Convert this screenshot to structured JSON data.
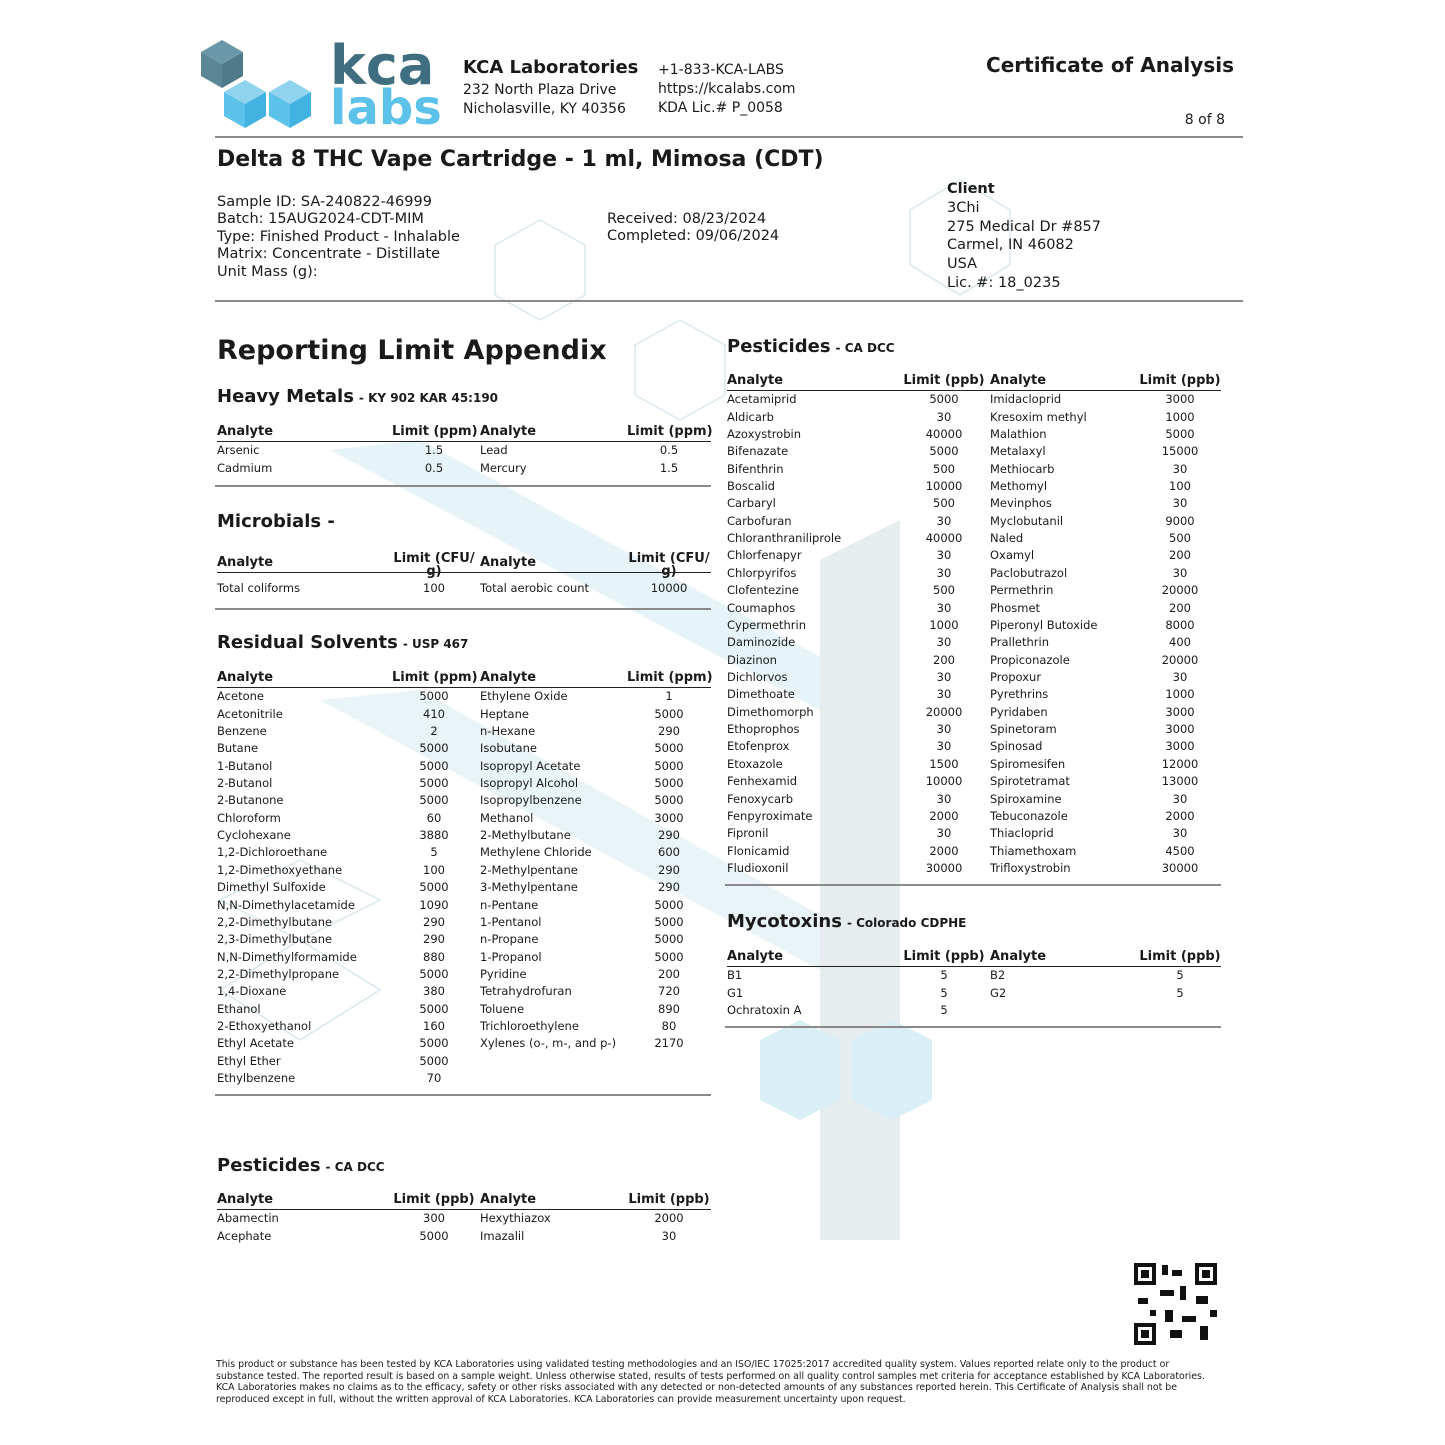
{
  "header": {
    "logo_top": "kca",
    "logo_bottom": "labs",
    "company": "KCA Laboratories",
    "address": [
      "232 North Plaza Drive",
      "Nicholasville, KY 40356"
    ],
    "contact": [
      "+1-833-KCA-LABS",
      "https://kcalabs.com",
      "KDA Lic.# P_0058"
    ],
    "doc_title": "Certificate of Analysis",
    "page": "8 of 8"
  },
  "product": "Delta 8 THC Vape Cartridge - 1 ml, Mimosa (CDT)",
  "sample_info": [
    "Sample ID: SA-240822-46999",
    "Batch: 15AUG2024-CDT-MIM",
    "Type: Finished Product - Inhalable",
    "Matrix: Concentrate - Distillate",
    "Unit Mass (g):"
  ],
  "dates": [
    "Received: 08/23/2024",
    "Completed: 09/06/2024"
  ],
  "client": {
    "label": "Client",
    "lines": [
      "3Chi",
      "275 Medical Dr #857",
      "Carmel, IN 46082",
      "USA",
      "Lic. #: 18_0235"
    ]
  },
  "appendix_title": "Reporting Limit Appendix",
  "sections": [
    {
      "title": "Heavy Metals",
      "subtitle": "- KY 902 KAR 45:190",
      "header": [
        "Analyte",
        "Limit (ppm)",
        "Analyte",
        "Limit (ppm)"
      ],
      "rows": [
        [
          "Arsenic",
          1.5,
          "Lead",
          0.5
        ],
        [
          "Cadmium",
          0.5,
          "Mercury",
          1.5
        ]
      ]
    },
    {
      "title": "Microbials -",
      "header": [
        "Analyte",
        "Limit (CFU/ g)",
        "Analyte",
        "Limit (CFU/ g)"
      ],
      "rows": [
        [
          "Total coliforms",
          100,
          "Total aerobic count",
          10000
        ]
      ]
    },
    {
      "title": "Residual Solvents",
      "subtitle": "- USP 467",
      "header": [
        "Analyte",
        "Limit (ppm)",
        "Analyte",
        "Limit (ppm)"
      ],
      "rows": [
        [
          "Acetone",
          5000,
          "Ethylene Oxide",
          1
        ],
        [
          "Acetonitrile",
          410,
          "Heptane",
          5000
        ],
        [
          "Benzene",
          2,
          "n-Hexane",
          290
        ],
        [
          "Butane",
          5000,
          "Isobutane",
          5000
        ],
        [
          "1-Butanol",
          5000,
          "Isopropyl Acetate",
          5000
        ],
        [
          "2-Butanol",
          5000,
          "Isopropyl Alcohol",
          5000
        ],
        [
          "2-Butanone",
          5000,
          "Isopropylbenzene",
          5000
        ],
        [
          "Chloroform",
          60,
          "Methanol",
          3000
        ],
        [
          "Cyclohexane",
          3880,
          "2-Methylbutane",
          290
        ],
        [
          "1,2-Dichloroethane",
          5,
          "Methylene Chloride",
          600
        ],
        [
          "1,2-Dimethoxyethane",
          100,
          "2-Methylpentane",
          290
        ],
        [
          "Dimethyl Sulfoxide",
          5000,
          "3-Methylpentane",
          290
        ],
        [
          "N,N-Dimethylacetamide",
          1090,
          "n-Pentane",
          5000
        ],
        [
          "2,2-Dimethylbutane",
          290,
          "1-Pentanol",
          5000
        ],
        [
          "2,3-Dimethylbutane",
          290,
          "n-Propane",
          5000
        ],
        [
          "N,N-Dimethylformamide",
          880,
          "1-Propanol",
          5000
        ],
        [
          "2,2-Dimethylpropane",
          5000,
          "Pyridine",
          200
        ],
        [
          "1,4-Dioxane",
          380,
          "Tetrahydrofuran",
          720
        ],
        [
          "Ethanol",
          5000,
          "Toluene",
          890
        ],
        [
          "2-Ethoxyethanol",
          160,
          "Trichloroethylene",
          80
        ],
        [
          "Ethyl Acetate",
          5000,
          "Xylenes (o-, m-, and p-)",
          2170
        ],
        [
          "Ethyl Ether",
          5000
        ],
        [
          "Ethylbenzene",
          70
        ]
      ]
    },
    {
      "title": "Pesticides",
      "subtitle": "- CA DCC",
      "header": [
        "Analyte",
        "Limit (ppb)",
        "Analyte",
        "Limit (ppb)"
      ],
      "rows": [
        [
          "Abamectin",
          300,
          "Hexythiazox",
          2000
        ],
        [
          "Acephate",
          5000,
          "Imazalil",
          30
        ]
      ]
    },
    {
      "title": "Pesticides",
      "subtitle": "- CA DCC",
      "header": [
        "Analyte",
        "Limit (ppb)",
        "Analyte",
        "Limit (ppb)"
      ],
      "rows": [
        [
          "Acetamiprid",
          5000,
          "Imidacloprid",
          3000
        ],
        [
          "Aldicarb",
          30,
          "Kresoxim methyl",
          1000
        ],
        [
          "Azoxystrobin",
          40000,
          "Malathion",
          5000
        ],
        [
          "Bifenazate",
          5000,
          "Metalaxyl",
          15000
        ],
        [
          "Bifenthrin",
          500,
          "Methiocarb",
          30
        ],
        [
          "Boscalid",
          10000,
          "Methomyl",
          100
        ],
        [
          "Carbaryl",
          500,
          "Mevinphos",
          30
        ],
        [
          "Carbofuran",
          30,
          "Myclobutanil",
          9000
        ],
        [
          "Chloranthraniliprole",
          40000,
          "Naled",
          500
        ],
        [
          "Chlorfenapyr",
          30,
          "Oxamyl",
          200
        ],
        [
          "Chlorpyrifos",
          30,
          "Paclobutrazol",
          30
        ],
        [
          "Clofentezine",
          500,
          "Permethrin",
          20000
        ],
        [
          "Coumaphos",
          30,
          "Phosmet",
          200
        ],
        [
          "Cypermethrin",
          1000,
          "Piperonyl Butoxide",
          8000
        ],
        [
          "Daminozide",
          30,
          "Prallethrin",
          400
        ],
        [
          "Diazinon",
          200,
          "Propiconazole",
          20000
        ],
        [
          "Dichlorvos",
          30,
          "Propoxur",
          30
        ],
        [
          "Dimethoate",
          30,
          "Pyrethrins",
          1000
        ],
        [
          "Dimethomorph",
          20000,
          "Pyridaben",
          3000
        ],
        [
          "Ethoprophos",
          30,
          "Spinetoram",
          3000
        ],
        [
          "Etofenprox",
          30,
          "Spinosad",
          3000
        ],
        [
          "Etoxazole",
          1500,
          "Spiromesifen",
          12000
        ],
        [
          "Fenhexamid",
          10000,
          "Spirotetramat",
          13000
        ],
        [
          "Fenoxycarb",
          30,
          "Spiroxamine",
          30
        ],
        [
          "Fenpyroximate",
          2000,
          "Tebuconazole",
          2000
        ],
        [
          "Fipronil",
          30,
          "Thiacloprid",
          30
        ],
        [
          "Flonicamid",
          2000,
          "Thiamethoxam",
          4500
        ],
        [
          "Fludioxonil",
          30000,
          "Trifloxystrobin",
          30000
        ]
      ]
    },
    {
      "title": "Mycotoxins",
      "subtitle": "- Colorado CDPHE",
      "header": [
        "Analyte",
        "Limit (ppb)",
        "Analyte",
        "Limit (ppb)"
      ],
      "rows": [
        [
          "B1",
          5,
          "B2",
          5
        ],
        [
          "G1",
          5,
          "G2",
          5
        ],
        [
          "Ochratoxin A",
          5
        ]
      ]
    }
  ],
  "disclaimer": "This product or substance has been tested by KCA Laboratories using validated testing methodologies and an ISO/IEC 17025:2017 accredited quality system. Values reported relate only to the product or substance tested. The reported result is based on a sample weight. Unless otherwise stated, results of tests performed on all quality control samples met criteria for acceptance established by KCA Laboratories. KCA Laboratories makes no claims as to the efficacy, safety or other risks associated with any detected or non-detected amounts of any substances reported herein. This Certificate of Analysis shall not be reproduced except in full, without the written approval of KCA Laboratories. KCA Laboratories can provide measurement uncertainty upon request."
}
